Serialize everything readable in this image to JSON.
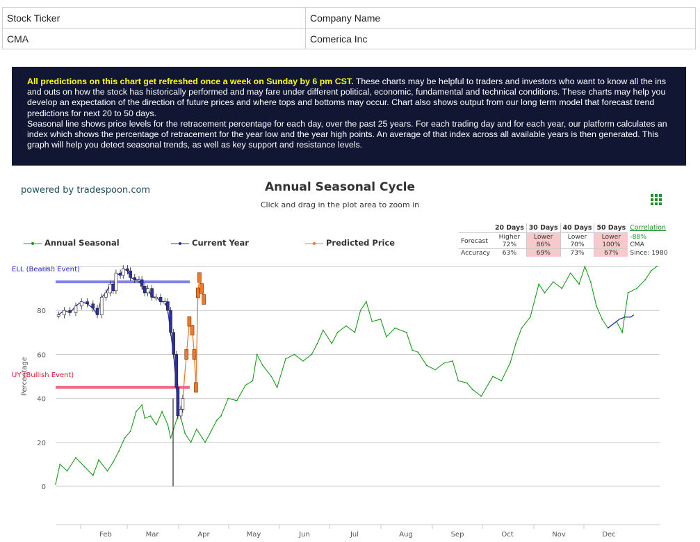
{
  "info_table": {
    "headers": [
      "Stock Ticker",
      "Company Name"
    ],
    "row": [
      "CMA",
      "Comerica Inc"
    ]
  },
  "notice": {
    "highlight": "All predictions on this chart get refreshed once a week on Sunday by 6 pm CST.",
    "body1": " These charts may be helpful to traders and investors who want to know all the ins and outs on how the stock has historically performed and may fare under different political, economic, fundamental and technical conditions. These charts may help you develop an expectation of the direction of future prices and where tops and bottoms may occur. Chart also shows output from our long term model that forecast trend predictions for next 20 to 50 days.",
    "body2": "Seasonal line shows price levels for the retracement percentage for each day, over the past 25 years. For each trading day and for each year, our platform calculates an index which shows the percentage of retracement for the year low and the year high points. An average of that index across all available years is then generated. This graph will help you detect seasonal trends, as well as key support and resistance levels."
  },
  "powered_by": "powered by tradespoon.com",
  "menu_icon": "grid-menu-icon",
  "colors": {
    "seasonal": "#1a9c1a",
    "current": "#2b2fa8",
    "predicted": "#f07a2a",
    "sell_line": "#8080f0",
    "buy_line": "#f06a80",
    "sell_text": "#2222cc",
    "buy_text": "#e0102a"
  },
  "stats": {
    "headers": [
      "20 Days",
      "30 Days",
      "40 Days",
      "50 Days"
    ],
    "forecast_label": "Forecast",
    "forecast": [
      {
        "dir": "Higher",
        "pct": "72%",
        "negative": false
      },
      {
        "dir": "Lower",
        "pct": "86%",
        "negative": true
      },
      {
        "dir": "Lower",
        "pct": "70%",
        "negative": false
      },
      {
        "dir": "Lower",
        "pct": "100%",
        "negative": true
      }
    ],
    "accuracy_label": "Accuracy",
    "accuracy": [
      {
        "pct": "63%",
        "negative": false
      },
      {
        "pct": "69%",
        "negative": true
      },
      {
        "pct": "73%",
        "negative": false
      },
      {
        "pct": "67%",
        "negative": true
      }
    ],
    "correlation_label": "Correlation",
    "correlation_value": "-88%",
    "ticker": "CMA",
    "since": "Since: 1980"
  },
  "chart_data": {
    "type": "line",
    "title": "Annual Seasonal Cycle",
    "subtitle": "Click and drag in the plot area to zoom in",
    "ylabel": "Percentage",
    "ylim": [
      0,
      100
    ],
    "yticks": [
      0,
      20,
      40,
      60,
      80,
      100
    ],
    "ytick_labels": [
      "0",
      "20",
      "40",
      "60",
      "80",
      ""
    ],
    "xmonths": [
      "Feb",
      "Mar",
      "Apr",
      "May",
      "Jun",
      "Jul",
      "Aug",
      "Sep",
      "Oct",
      "Nov",
      "Dec"
    ],
    "legend": [
      "Annual Seasonal",
      "Current Year",
      "Predicted Price"
    ],
    "annotations": {
      "sell": {
        "label": "ELL (Bearish Event)",
        "value": 93
      },
      "buy": {
        "label": "UY (Bullish Event)",
        "value": 45
      },
      "sell_ytick_overlap": "100"
    },
    "series": [
      {
        "name": "Annual Seasonal",
        "points": [
          [
            0.0,
            1
          ],
          [
            0.15,
            10
          ],
          [
            0.4,
            7
          ],
          [
            0.7,
            13
          ],
          [
            1.0,
            9
          ],
          [
            1.3,
            5
          ],
          [
            1.5,
            12
          ],
          [
            1.8,
            7
          ],
          [
            2.0,
            11
          ],
          [
            2.2,
            16
          ],
          [
            2.4,
            22
          ],
          [
            2.6,
            25
          ],
          [
            2.8,
            34
          ],
          [
            3.0,
            37
          ],
          [
            3.1,
            31
          ],
          [
            3.3,
            32
          ],
          [
            3.5,
            28
          ],
          [
            3.7,
            34
          ],
          [
            3.9,
            28
          ],
          [
            4.0,
            22
          ],
          [
            4.1,
            26
          ],
          [
            4.3,
            34
          ],
          [
            4.5,
            24
          ],
          [
            4.7,
            20
          ],
          [
            4.9,
            26
          ],
          [
            5.1,
            22
          ],
          [
            5.2,
            20
          ],
          [
            5.4,
            25
          ],
          [
            5.6,
            30
          ],
          [
            5.75,
            32
          ],
          [
            6.0,
            40
          ],
          [
            6.3,
            39
          ],
          [
            6.6,
            46
          ],
          [
            6.85,
            48
          ],
          [
            7.0,
            60
          ],
          [
            7.2,
            55
          ],
          [
            7.5,
            50
          ],
          [
            7.7,
            45
          ],
          [
            8.0,
            58
          ],
          [
            8.3,
            60
          ],
          [
            8.6,
            57
          ],
          [
            8.9,
            60
          ],
          [
            9.1,
            65
          ],
          [
            9.3,
            71
          ],
          [
            9.6,
            65
          ],
          [
            9.8,
            70
          ],
          [
            10.1,
            73
          ],
          [
            10.4,
            70
          ],
          [
            10.6,
            80
          ],
          [
            10.8,
            84
          ],
          [
            11.0,
            75
          ],
          [
            11.3,
            76
          ],
          [
            11.5,
            68
          ],
          [
            11.8,
            72
          ],
          [
            12.2,
            70
          ],
          [
            12.4,
            62
          ],
          [
            12.6,
            61
          ],
          [
            12.9,
            55
          ],
          [
            13.2,
            53
          ],
          [
            13.5,
            56
          ],
          [
            13.8,
            57
          ],
          [
            14.0,
            48
          ],
          [
            14.3,
            47
          ],
          [
            14.5,
            44
          ],
          [
            14.8,
            41
          ],
          [
            15.2,
            50
          ],
          [
            15.5,
            48
          ],
          [
            15.8,
            56
          ],
          [
            16.0,
            65
          ],
          [
            16.2,
            72
          ],
          [
            16.5,
            77
          ],
          [
            16.8,
            92
          ],
          [
            17.0,
            88
          ],
          [
            17.3,
            93
          ],
          [
            17.6,
            90
          ],
          [
            17.9,
            97
          ],
          [
            18.2,
            92
          ],
          [
            18.4,
            100
          ],
          [
            18.6,
            93
          ],
          [
            18.8,
            82
          ],
          [
            19.0,
            76
          ],
          [
            19.2,
            72
          ],
          [
            19.5,
            75
          ],
          [
            19.7,
            70
          ],
          [
            19.9,
            88
          ],
          [
            20.2,
            90
          ],
          [
            20.5,
            94
          ],
          [
            20.7,
            98
          ],
          [
            20.9,
            100
          ]
        ]
      },
      {
        "name": "Current Year",
        "points": [
          [
            0.1,
            78
          ],
          [
            0.3,
            80
          ],
          [
            0.5,
            79
          ],
          [
            0.7,
            82
          ],
          [
            0.9,
            84
          ],
          [
            1.1,
            83
          ],
          [
            1.3,
            81
          ],
          [
            1.45,
            78
          ],
          [
            1.6,
            86
          ],
          [
            1.75,
            88
          ],
          [
            1.9,
            92
          ],
          [
            2.0,
            89
          ],
          [
            2.1,
            97
          ],
          [
            2.25,
            96
          ],
          [
            2.35,
            99
          ],
          [
            2.5,
            98
          ],
          [
            2.6,
            95
          ],
          [
            2.75,
            94
          ],
          [
            2.9,
            94
          ],
          [
            3.0,
            91
          ],
          [
            3.1,
            88
          ],
          [
            3.2,
            90
          ],
          [
            3.35,
            86
          ],
          [
            3.5,
            86
          ],
          [
            3.65,
            84
          ],
          [
            3.8,
            84
          ],
          [
            3.9,
            80
          ],
          [
            4.0,
            70
          ],
          [
            4.1,
            60
          ],
          [
            4.2,
            45
          ],
          [
            4.25,
            32
          ],
          [
            4.35,
            35
          ],
          [
            4.42,
            40
          ]
        ]
      },
      {
        "name": "Predicted Price",
        "points": [
          [
            4.42,
            40
          ],
          [
            4.55,
            60
          ],
          [
            4.65,
            75
          ],
          [
            4.75,
            71
          ],
          [
            4.82,
            60
          ],
          [
            4.88,
            45
          ],
          [
            4.95,
            88
          ],
          [
            5.0,
            95
          ],
          [
            5.08,
            90
          ],
          [
            5.15,
            85
          ]
        ]
      },
      {
        "name": "Current Year (Dec)",
        "points": [
          [
            19.2,
            72
          ],
          [
            19.4,
            74
          ],
          [
            19.6,
            76
          ],
          [
            19.8,
            77
          ],
          [
            20.0,
            77
          ],
          [
            20.1,
            78
          ]
        ]
      }
    ]
  }
}
